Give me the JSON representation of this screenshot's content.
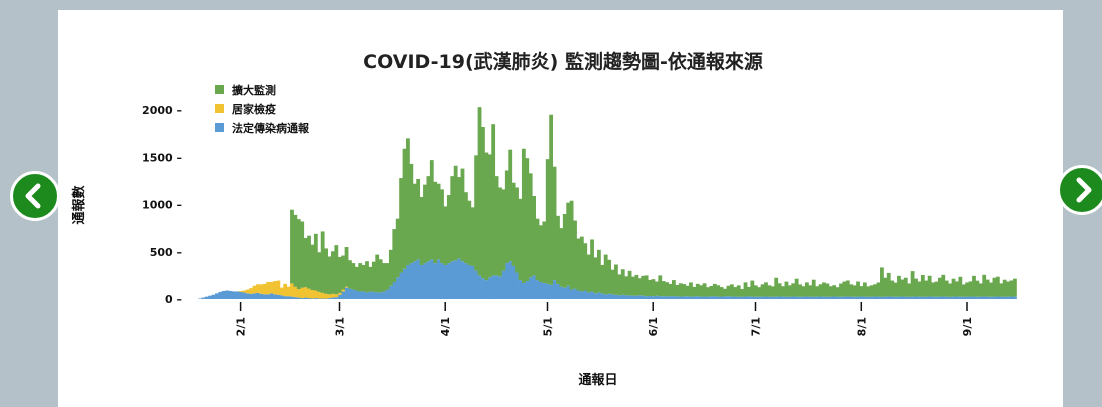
{
  "carousel": {
    "prev_icon": "chevron-left-icon",
    "next_icon": "chevron-right-icon",
    "button_color": "#1d8a1d"
  },
  "chart_data": {
    "type": "bar",
    "stacked": true,
    "title": "COVID-19(武漢肺炎) 監測趨勢圖-依通報來源",
    "xlabel": "通報日",
    "ylabel": "通報數",
    "ylim": [
      0,
      2000
    ],
    "yticks": [
      0,
      500,
      1000,
      1500,
      2000
    ],
    "ytick_labels": [
      "0 –",
      "500 –",
      "1000 –",
      "1500 –",
      "2000 –"
    ],
    "x_start": "2020-01-20",
    "x_end": "2020-09-15",
    "xticks": [
      "2/1",
      "3/1",
      "4/1",
      "5/1",
      "6/1",
      "7/1",
      "8/1",
      "9/1"
    ],
    "legend_position": "top-left",
    "series": [
      {
        "name": "擴大監測",
        "color": "#6aa84f",
        "start": "2020-02-16",
        "values": [
          780,
          760,
          740,
          700,
          520,
          560,
          480,
          600,
          420,
          650,
          480,
          400,
          450,
          520,
          380,
          360,
          420,
          300,
          280,
          250,
          300,
          280,
          330,
          260,
          320,
          400,
          350,
          300,
          280,
          380,
          560,
          620,
          1000,
          1270,
          1340,
          1050,
          820,
          850,
          720,
          830,
          900,
          1050,
          860,
          800,
          780,
          620,
          720,
          900,
          1000,
          860,
          980,
          750,
          680,
          620,
          1220,
          1780,
          1600,
          1350,
          1300,
          1600,
          1050,
          940,
          860,
          980,
          1180,
          880,
          900,
          860,
          1420,
          1300,
          1100,
          840,
          650,
          600,
          650,
          1320,
          1800,
          1200,
          720,
          620,
          780,
          880,
          940,
          720,
          550,
          580,
          500,
          400,
          550,
          380,
          450,
          300,
          420,
          360,
          260,
          320,
          220,
          270,
          200,
          260,
          200,
          220,
          180,
          210,
          220,
          170,
          180,
          150,
          220,
          160,
          150,
          130,
          170,
          120,
          140,
          130,
          110,
          150,
          100,
          130,
          120,
          140,
          100,
          110,
          130,
          120,
          100,
          80,
          110,
          130,
          100,
          120,
          80,
          150,
          100,
          170,
          120,
          100,
          130,
          150,
          120,
          110,
          200,
          140,
          110,
          160,
          120,
          140,
          190,
          130,
          110,
          150,
          120,
          180,
          110,
          130,
          150,
          140,
          110,
          120,
          100,
          140,
          160,
          170,
          130,
          120,
          160,
          110,
          150,
          110,
          120,
          130,
          150,
          310,
          200,
          250,
          170,
          150,
          220,
          180,
          200,
          140,
          270,
          190,
          160,
          230,
          170,
          220,
          150,
          160,
          200,
          230,
          170,
          140,
          190,
          160,
          210,
          130,
          150,
          160,
          220,
          170,
          140,
          230,
          180,
          150,
          200,
          210,
          140,
          180,
          160,
          170,
          190,
          150,
          200,
          180,
          160
        ]
      },
      {
        "name": "居家檢疫",
        "color": "#f1c232",
        "start": "2020-01-27",
        "values": [
          0,
          0,
          0,
          0,
          0,
          10,
          20,
          40,
          60,
          80,
          90,
          100,
          110,
          130,
          120,
          140,
          150,
          80,
          130,
          100,
          140,
          110,
          90,
          110,
          110,
          100,
          90,
          80,
          70,
          60,
          50,
          40,
          40,
          30,
          20,
          20,
          10
        ]
      },
      {
        "name": "法定傳染病通報",
        "color": "#5b9bd5",
        "start": "2020-01-20",
        "values": [
          5,
          15,
          25,
          35,
          45,
          60,
          75,
          85,
          90,
          85,
          80,
          80,
          75,
          70,
          60,
          55,
          60,
          65,
          55,
          50,
          50,
          60,
          50,
          45,
          40,
          30,
          30,
          25,
          20,
          15,
          10,
          15,
          10,
          5,
          10,
          5,
          5,
          5,
          10,
          15,
          20,
          45,
          80,
          120,
          110,
          100,
          90,
          80,
          80,
          70,
          80,
          75,
          70,
          70,
          80,
          100,
          140,
          180,
          230,
          280,
          320,
          360,
          380,
          400,
          420,
          360,
          380,
          400,
          420,
          380,
          420,
          380,
          360,
          380,
          400,
          410,
          430,
          400,
          380,
          360,
          350,
          300,
          250,
          220,
          200,
          230,
          250,
          250,
          240,
          300,
          380,
          400,
          350,
          280,
          200,
          170,
          190,
          230,
          250,
          200,
          180,
          170,
          160,
          150,
          200,
          160,
          130,
          120,
          140,
          100,
          110,
          90,
          80,
          90,
          70,
          80,
          60,
          70,
          60,
          50,
          55,
          50,
          45,
          40,
          45,
          40,
          38,
          36,
          35,
          40,
          35,
          30,
          32,
          30,
          35,
          30,
          30,
          28,
          30,
          30,
          28,
          26,
          28,
          30,
          25,
          28,
          30,
          25,
          26,
          25,
          28,
          30,
          25,
          26,
          28,
          30,
          25,
          26,
          24,
          25,
          26,
          28,
          25,
          24,
          25,
          25,
          26,
          25,
          24,
          25,
          26,
          25,
          24,
          25,
          26,
          25,
          24,
          25,
          26,
          25,
          24,
          25,
          26,
          25,
          24,
          25,
          26,
          25,
          24,
          25,
          26,
          25,
          24,
          25,
          26,
          25,
          24,
          25,
          26,
          25,
          24,
          25,
          26,
          25,
          24,
          25,
          26,
          25,
          24,
          25,
          26,
          25,
          24,
          25,
          26,
          25,
          24,
          25,
          26,
          25,
          24,
          25,
          26,
          25,
          24,
          25,
          26,
          25,
          24,
          25,
          26,
          25,
          24,
          25,
          26,
          25,
          24,
          25,
          26,
          25,
          24,
          25,
          26
        ]
      }
    ]
  }
}
